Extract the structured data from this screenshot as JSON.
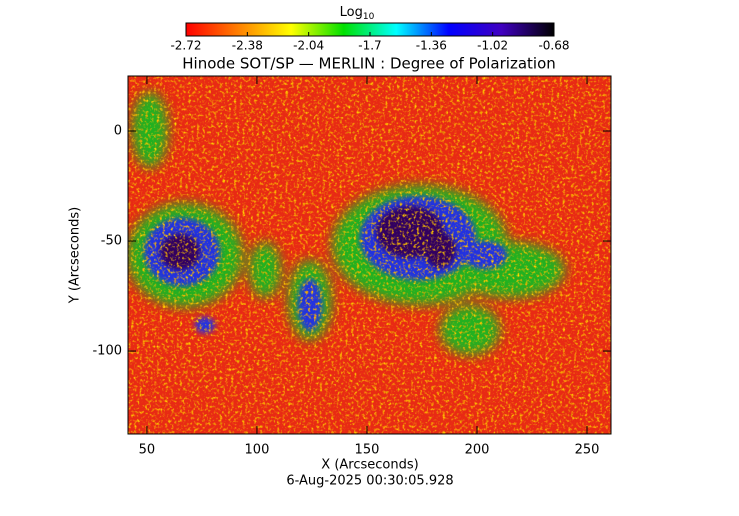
{
  "chart_data": {
    "type": "image",
    "title": "Hinode SOT/SP — MERLIN : Degree of Polarization",
    "x_label": "X (Arcseconds)",
    "y_label": "Y (Arcseconds)",
    "date": "6-Aug-2025 00:30:05.928",
    "xlim": [
      41.4,
      260.9
    ],
    "xticks": [
      50,
      100,
      150,
      200,
      250
    ],
    "ylim": [
      -137.7,
      25
    ],
    "yticks": [
      0,
      -50,
      -100
    ],
    "colorbar": {
      "label": "Log",
      "label_sub": "10",
      "lim": [
        -2.72,
        -0.68
      ],
      "ticks": [
        -2.72,
        -2.38,
        -2.04,
        -1.7,
        -1.36,
        -1.02,
        -0.68
      ],
      "colormap": [
        "#ff0000",
        "#ff8000",
        "#ffff00",
        "#00e000",
        "#00ffff",
        "#0000ff",
        "#4000c0",
        "#000000"
      ]
    }
  }
}
